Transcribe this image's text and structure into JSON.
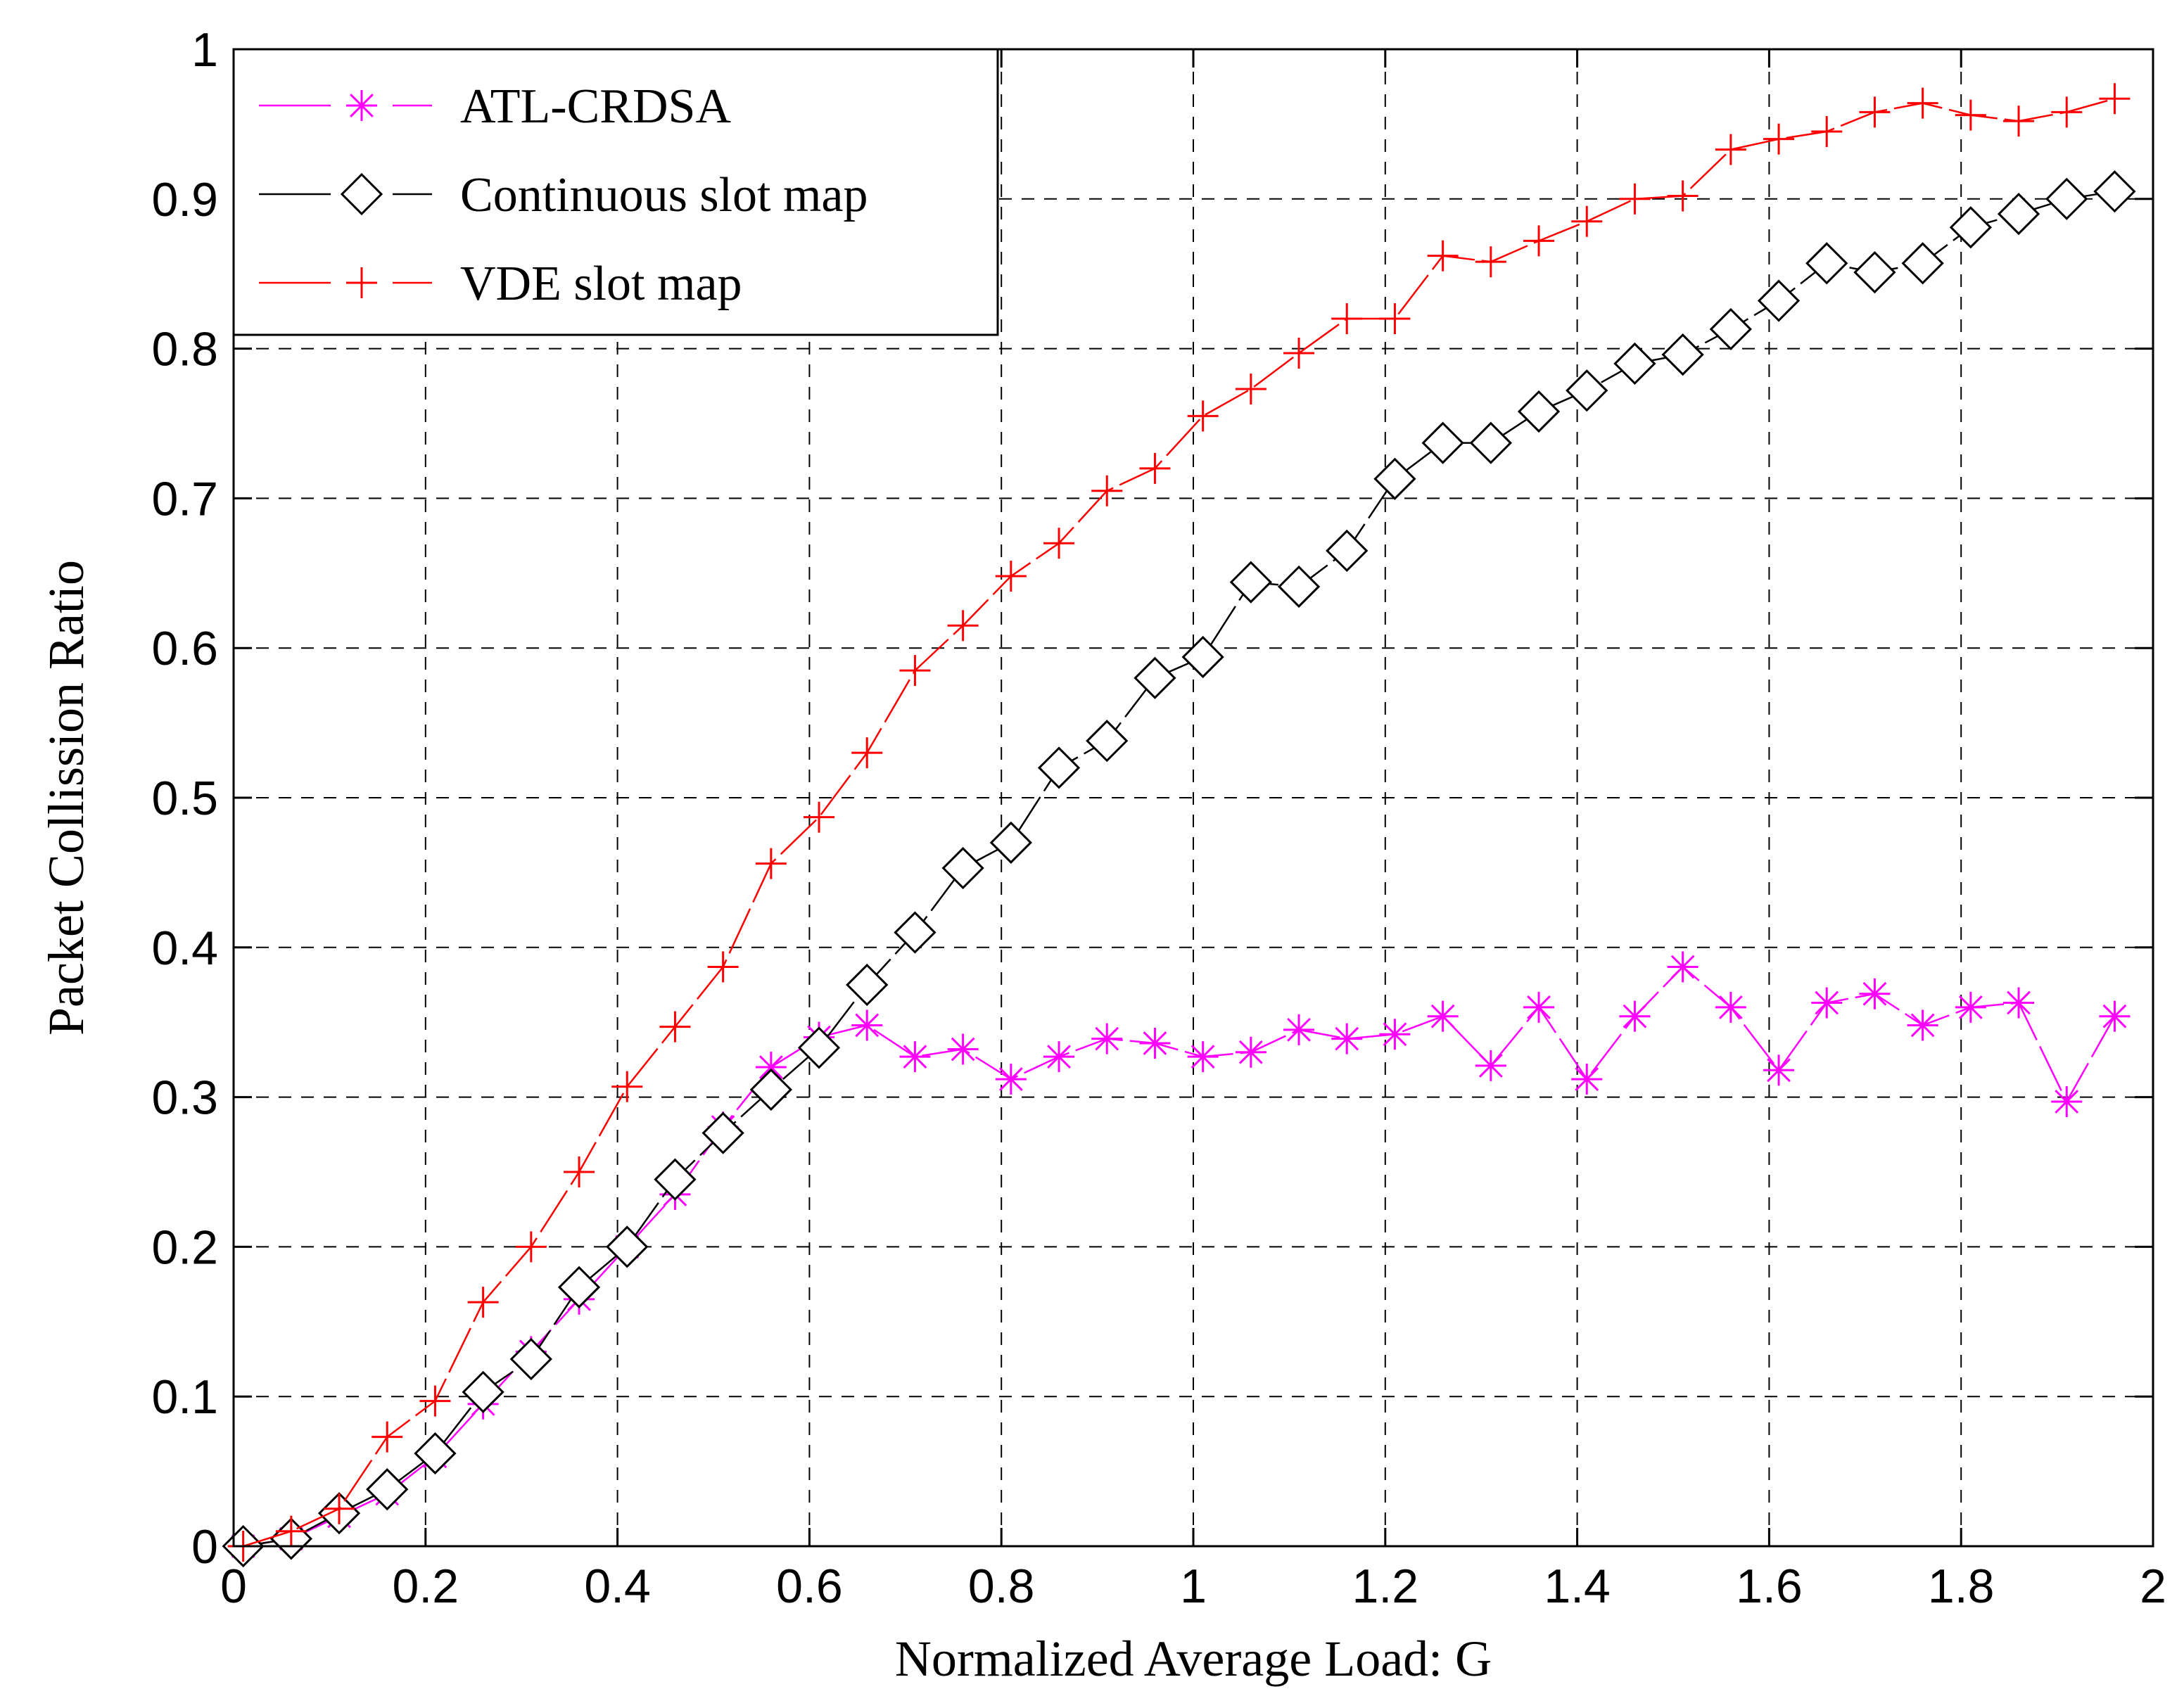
{
  "chart_data": {
    "type": "line",
    "xlabel": "Normalized Average Load: G",
    "ylabel": "Packet Collission Ratio",
    "xlim": [
      0,
      2
    ],
    "ylim": [
      0,
      1
    ],
    "xticks": [
      0,
      0.2,
      0.4,
      0.6,
      0.8,
      1,
      1.2,
      1.4,
      1.6,
      1.8,
      2
    ],
    "xtick_labels": [
      "0",
      "0.2",
      "0.4",
      "0.6",
      "0.8",
      "1",
      "1.2",
      "1.4",
      "1.6",
      "1.8",
      "2"
    ],
    "yticks": [
      0,
      0.1,
      0.2,
      0.3,
      0.4,
      0.5,
      0.6,
      0.7,
      0.8,
      0.9,
      1
    ],
    "ytick_labels": [
      "0",
      "0.1",
      "0.2",
      "0.3",
      "0.4",
      "0.5",
      "0.6",
      "0.7",
      "0.8",
      "0.9",
      "1"
    ],
    "grid": true,
    "legend_position": "top-left",
    "x": [
      0.01,
      0.06,
      0.11,
      0.16,
      0.21,
      0.26,
      0.31,
      0.36,
      0.41,
      0.46,
      0.51,
      0.56,
      0.61,
      0.66,
      0.71,
      0.76,
      0.81,
      0.86,
      0.91,
      0.96,
      1.01,
      1.06,
      1.11,
      1.16,
      1.21,
      1.26,
      1.31,
      1.36,
      1.41,
      1.46,
      1.51,
      1.56,
      1.61,
      1.66,
      1.71,
      1.76,
      1.81,
      1.86,
      1.91,
      1.96
    ],
    "series": [
      {
        "name": "ATL-CRDSA",
        "color": "#ff00ff",
        "marker": "asterisk",
        "values": [
          0.0,
          0.005,
          0.02,
          0.035,
          0.06,
          0.095,
          0.13,
          0.165,
          0.2,
          0.235,
          0.28,
          0.32,
          0.34,
          0.348,
          0.327,
          0.332,
          0.312,
          0.327,
          0.339,
          0.336,
          0.327,
          0.33,
          0.345,
          0.339,
          0.342,
          0.354,
          0.321,
          0.36,
          0.312,
          0.354,
          0.387,
          0.36,
          0.318,
          0.363,
          0.369,
          0.348,
          0.36,
          0.363,
          0.297,
          0.354
        ]
      },
      {
        "name": "Continuous slot map",
        "color": "#000000",
        "marker": "diamond",
        "values": [
          0.0,
          0.005,
          0.022,
          0.038,
          0.062,
          0.103,
          0.125,
          0.173,
          0.2,
          0.245,
          0.276,
          0.305,
          0.333,
          0.375,
          0.41,
          0.453,
          0.47,
          0.52,
          0.538,
          0.58,
          0.594,
          0.644,
          0.641,
          0.665,
          0.713,
          0.737,
          0.737,
          0.758,
          0.772,
          0.79,
          0.796,
          0.813,
          0.832,
          0.857,
          0.851,
          0.857,
          0.881,
          0.89,
          0.9,
          0.905
        ]
      },
      {
        "name": "VDE slot map",
        "color": "#ff0000",
        "marker": "plus",
        "values": [
          0.0,
          0.01,
          0.025,
          0.073,
          0.097,
          0.163,
          0.2,
          0.25,
          0.307,
          0.347,
          0.387,
          0.456,
          0.487,
          0.53,
          0.585,
          0.615,
          0.648,
          0.67,
          0.705,
          0.72,
          0.755,
          0.773,
          0.797,
          0.82,
          0.82,
          0.862,
          0.858,
          0.872,
          0.885,
          0.9,
          0.902,
          0.933,
          0.94,
          0.945,
          0.958,
          0.964,
          0.956,
          0.952,
          0.958,
          0.967
        ]
      }
    ]
  }
}
